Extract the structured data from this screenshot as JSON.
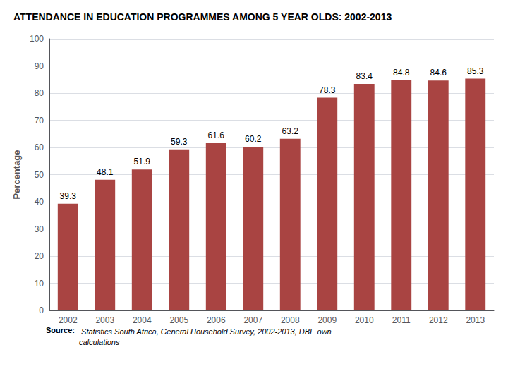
{
  "chart_data": {
    "type": "bar",
    "title": "ATTENDANCE IN EDUCATION PROGRAMMES AMONG 5 YEAR OLDS: 2002-2013",
    "categories": [
      "2002",
      "2003",
      "2004",
      "2005",
      "2006",
      "2007",
      "2008",
      "2009",
      "2010",
      "2011",
      "2012",
      "2013"
    ],
    "values": [
      39.3,
      48.1,
      51.9,
      59.3,
      61.6,
      60.2,
      63.2,
      78.3,
      83.4,
      84.8,
      84.6,
      85.3
    ],
    "color": "#A94442",
    "y_label": "Percentage",
    "ylim": [
      0,
      100
    ],
    "yticks": [
      0,
      10,
      20,
      30,
      40,
      50,
      60,
      70,
      80,
      90,
      100
    ],
    "grid": true,
    "data_labels": true,
    "annotations": [
      "Source:",
      " Statistics South Africa, General Household Survey, 2002-2013, DBE own\ncalculations"
    ]
  }
}
